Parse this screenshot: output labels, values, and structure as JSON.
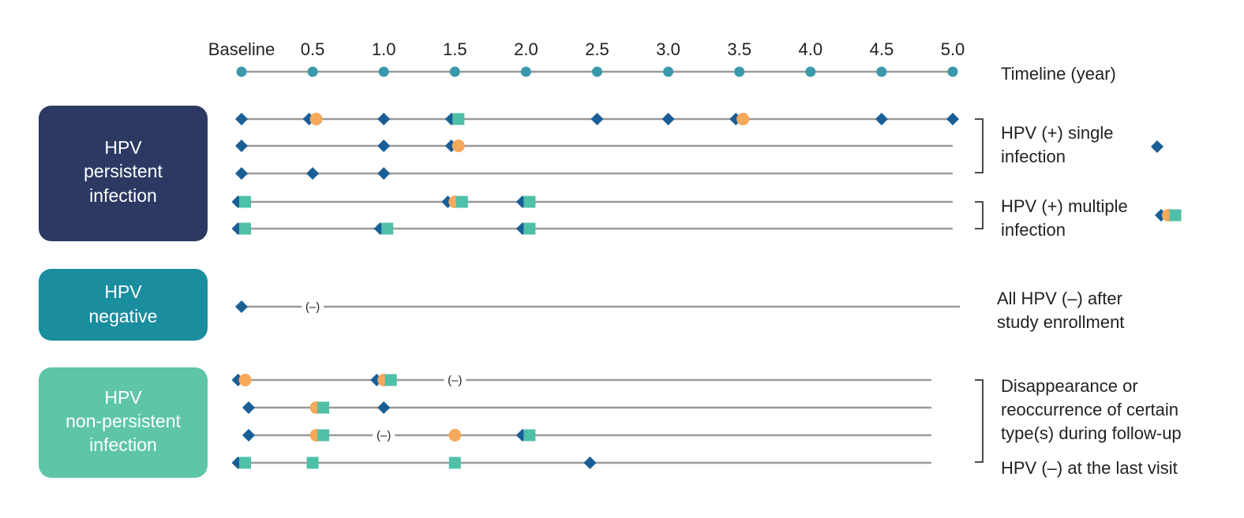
{
  "timeline": {
    "ticks": [
      "Baseline",
      "0.5",
      "1.0",
      "1.5",
      "2.0",
      "2.5",
      "3.0",
      "3.5",
      "4.0",
      "4.5",
      "5.0"
    ],
    "title": "Timeline (year)"
  },
  "colors": {
    "single_infection": "#1a5e96",
    "multiple_orange": "#f5a95b",
    "multiple_teal": "#4fc0a8",
    "timeline_dot": "#3a9aac",
    "line": "#9a9a9a",
    "box_persistent": "#2c3a63",
    "box_negative": "#1a8d9e",
    "box_nonpersistent": "#5ec5a8"
  },
  "groups": [
    {
      "id": "persistent",
      "label_lines": [
        "HPV",
        "persistent",
        "infection"
      ],
      "rows": [
        {
          "end": 5.0,
          "markers": [
            {
              "t": 0,
              "types": [
                "d"
              ]
            },
            {
              "t": 0.5,
              "types": [
                "d",
                "c"
              ]
            },
            {
              "t": 1.0,
              "types": [
                "d"
              ]
            },
            {
              "t": 1.5,
              "types": [
                "d",
                "s"
              ]
            },
            {
              "t": 2.5,
              "types": [
                "d"
              ]
            },
            {
              "t": 3.0,
              "types": [
                "d"
              ]
            },
            {
              "t": 3.5,
              "types": [
                "d",
                "c"
              ]
            },
            {
              "t": 4.5,
              "types": [
                "d"
              ]
            },
            {
              "t": 5.0,
              "types": [
                "d"
              ]
            }
          ],
          "neg": []
        },
        {
          "end": 5.0,
          "markers": [
            {
              "t": 0,
              "types": [
                "d"
              ]
            },
            {
              "t": 1.0,
              "types": [
                "d"
              ]
            },
            {
              "t": 1.5,
              "types": [
                "d",
                "c"
              ]
            }
          ],
          "neg": []
        },
        {
          "end": 5.0,
          "markers": [
            {
              "t": 0,
              "types": [
                "d"
              ]
            },
            {
              "t": 0.5,
              "types": [
                "d"
              ]
            },
            {
              "t": 1.0,
              "types": [
                "d"
              ]
            }
          ],
          "neg": []
        },
        {
          "end": 5.0,
          "markers": [
            {
              "t": 0,
              "types": [
                "d",
                "s"
              ]
            },
            {
              "t": 1.5,
              "types": [
                "d",
                "c",
                "s"
              ]
            },
            {
              "t": 2.0,
              "types": [
                "d",
                "s"
              ]
            }
          ],
          "neg": []
        },
        {
          "end": 5.0,
          "markers": [
            {
              "t": 0,
              "types": [
                "d",
                "s"
              ]
            },
            {
              "t": 1.0,
              "types": [
                "d",
                "s"
              ]
            },
            {
              "t": 2.0,
              "types": [
                "d",
                "s"
              ]
            }
          ],
          "neg": []
        }
      ]
    },
    {
      "id": "negative",
      "label_lines": [
        "HPV",
        "negative"
      ],
      "rows": [
        {
          "end": 5.05,
          "markers": [
            {
              "t": 0,
              "types": [
                "d"
              ]
            }
          ],
          "neg": [
            0.5
          ]
        }
      ]
    },
    {
      "id": "nonpersistent",
      "label_lines": [
        "HPV",
        "non-persistent",
        "infection"
      ],
      "rows": [
        {
          "end": 4.85,
          "markers": [
            {
              "t": 0,
              "types": [
                "d",
                "c"
              ]
            },
            {
              "t": 1.0,
              "types": [
                "d",
                "c",
                "s"
              ]
            }
          ],
          "neg": [
            1.5
          ]
        },
        {
          "end": 4.85,
          "markers": [
            {
              "t": 0.05,
              "types": [
                "d"
              ]
            },
            {
              "t": 0.55,
              "types": [
                "c",
                "s"
              ]
            },
            {
              "t": 1.0,
              "types": [
                "d"
              ]
            }
          ],
          "neg": []
        },
        {
          "end": 4.85,
          "markers": [
            {
              "t": 0.05,
              "types": [
                "d"
              ]
            },
            {
              "t": 0.55,
              "types": [
                "c",
                "s"
              ]
            },
            {
              "t": 1.5,
              "types": [
                "c"
              ]
            },
            {
              "t": 2.0,
              "types": [
                "d",
                "s"
              ]
            }
          ],
          "neg": [
            1.0
          ]
        },
        {
          "end": 4.85,
          "markers": [
            {
              "t": 0,
              "types": [
                "d",
                "s"
              ]
            },
            {
              "t": 0.5,
              "types": [
                "s"
              ]
            },
            {
              "t": 1.5,
              "types": [
                "s"
              ]
            },
            {
              "t": 2.45,
              "types": [
                "d"
              ]
            }
          ],
          "neg": []
        }
      ]
    }
  ],
  "neg_symbol": "(–)",
  "legend": {
    "single": [
      "HPV (+) single",
      "infection"
    ],
    "multiple": [
      "HPV (+) multiple",
      "infection"
    ],
    "all_negative": [
      "All HPV (–) after",
      "study enrollment"
    ],
    "disappearance": [
      "Disappearance or",
      "reoccurrence of certain",
      "type(s) during follow-up"
    ],
    "last_visit": "HPV (–) at the last visit"
  }
}
